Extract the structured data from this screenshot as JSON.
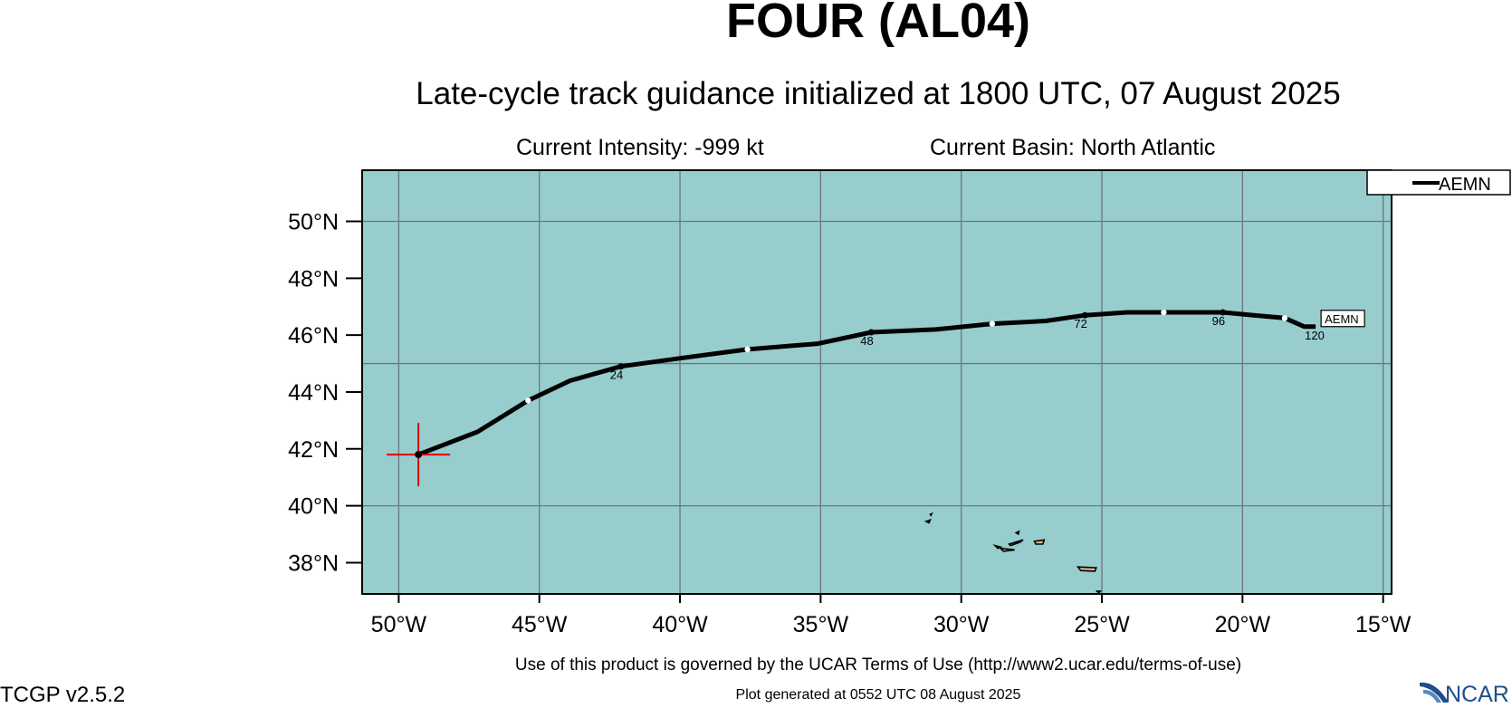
{
  "header": {
    "title": "FOUR (AL04)",
    "subtitle": "Late-cycle track guidance initialized at 1800 UTC, 07 August 2025",
    "intensity": "Current Intensity: -999 kt",
    "basin": "Current Basin: North Atlantic"
  },
  "footer": {
    "terms": "Use of this product is governed by the UCAR Terms of Use (http://www2.ucar.edu/terms-of-use)",
    "generated": "Plot generated at 0552 UTC   08 August 2025",
    "version": "TCGP v2.5.2",
    "logo_text": "NCAR"
  },
  "colors": {
    "ocean": "#97cdcd",
    "grid": "#6e7676",
    "track": "#000000",
    "current_position": "#dd0000",
    "land": "#d8b68a"
  },
  "map": {
    "lon_range": [
      -51.3,
      -14.7
    ],
    "lat_range": [
      36.9,
      51.8
    ],
    "lon_ticks": [
      {
        "value": -50,
        "label": "50°W"
      },
      {
        "value": -45,
        "label": "45°W"
      },
      {
        "value": -40,
        "label": "40°W"
      },
      {
        "value": -35,
        "label": "35°W"
      },
      {
        "value": -30,
        "label": "30°W"
      },
      {
        "value": -25,
        "label": "25°W"
      },
      {
        "value": -20,
        "label": "20°W"
      },
      {
        "value": -15,
        "label": "15°W"
      }
    ],
    "lat_ticks": [
      {
        "value": 38,
        "label": "38°N"
      },
      {
        "value": 40,
        "label": "40°N"
      },
      {
        "value": 42,
        "label": "42°N"
      },
      {
        "value": 44,
        "label": "44°N"
      },
      {
        "value": 46,
        "label": "46°N"
      },
      {
        "value": 48,
        "label": "48°N"
      },
      {
        "value": 50,
        "label": "50°N"
      }
    ],
    "current_position": {
      "lon": -49.3,
      "lat": 41.8
    },
    "legend": [
      {
        "name": "AEMN"
      }
    ]
  },
  "chart_data": {
    "type": "line",
    "series": [
      {
        "name": "AEMN",
        "points": [
          {
            "lon": -49.3,
            "lat": 41.8,
            "tau": 0,
            "marker": "dot"
          },
          {
            "lon": -47.2,
            "lat": 42.6,
            "tau": 6
          },
          {
            "lon": -45.4,
            "lat": 43.7,
            "tau": 12,
            "marker": "open"
          },
          {
            "lon": -43.9,
            "lat": 44.4,
            "tau": 18
          },
          {
            "lon": -42.1,
            "lat": 44.9,
            "tau": 24,
            "marker": "dot",
            "label": "24"
          },
          {
            "lon": -39.9,
            "lat": 45.2,
            "tau": 30
          },
          {
            "lon": -37.6,
            "lat": 45.5,
            "tau": 36,
            "marker": "open"
          },
          {
            "lon": -35.1,
            "lat": 45.7,
            "tau": 42
          },
          {
            "lon": -33.2,
            "lat": 46.1,
            "tau": 48,
            "marker": "dot",
            "label": "48"
          },
          {
            "lon": -30.9,
            "lat": 46.2,
            "tau": 54
          },
          {
            "lon": -28.9,
            "lat": 46.4,
            "tau": 60,
            "marker": "open"
          },
          {
            "lon": -27.0,
            "lat": 46.5,
            "tau": 66
          },
          {
            "lon": -25.6,
            "lat": 46.7,
            "tau": 72,
            "marker": "dot",
            "label": "72"
          },
          {
            "lon": -24.1,
            "lat": 46.8,
            "tau": 78
          },
          {
            "lon": -22.8,
            "lat": 46.8,
            "tau": 84,
            "marker": "open"
          },
          {
            "lon": -21.5,
            "lat": 46.8,
            "tau": 90
          },
          {
            "lon": -20.7,
            "lat": 46.8,
            "tau": 96,
            "marker": "dot",
            "label": "96"
          },
          {
            "lon": -19.6,
            "lat": 46.7,
            "tau": 102
          },
          {
            "lon": -18.5,
            "lat": 46.6,
            "tau": 108,
            "marker": "open"
          },
          {
            "lon": -17.8,
            "lat": 46.3,
            "tau": 114
          },
          {
            "lon": -17.4,
            "lat": 46.3,
            "tau": 120,
            "label": "120"
          }
        ],
        "end_label": "AEMN"
      }
    ],
    "xlabel": "",
    "ylabel": "",
    "xlim": [
      -51.3,
      -14.7
    ],
    "ylim": [
      36.9,
      51.8
    ],
    "grid": true,
    "legend_position": "outside-top-right"
  },
  "islands": [
    {
      "name": "flores-corvo-a",
      "points": [
        [
          -31.25,
          39.45
        ],
        [
          -31.1,
          39.5
        ],
        [
          -31.15,
          39.4
        ]
      ]
    },
    {
      "name": "flores-corvo-b",
      "points": [
        [
          -31.1,
          39.7
        ],
        [
          -31.05,
          39.72
        ],
        [
          -31.08,
          39.66
        ]
      ]
    },
    {
      "name": "faial",
      "points": [
        [
          -28.8,
          38.6
        ],
        [
          -28.6,
          38.55
        ],
        [
          -28.7,
          38.5
        ]
      ]
    },
    {
      "name": "pico",
      "points": [
        [
          -28.6,
          38.5
        ],
        [
          -28.1,
          38.45
        ],
        [
          -28.5,
          38.4
        ]
      ]
    },
    {
      "name": "sao-jorge",
      "points": [
        [
          -28.3,
          38.65
        ],
        [
          -27.8,
          38.8
        ],
        [
          -27.9,
          38.72
        ],
        [
          -28.25,
          38.6
        ]
      ]
    },
    {
      "name": "graciosa",
      "points": [
        [
          -28.05,
          39.05
        ],
        [
          -27.95,
          39.1
        ],
        [
          -27.97,
          39.0
        ]
      ]
    },
    {
      "name": "terceira",
      "points": [
        [
          -27.4,
          38.75
        ],
        [
          -27.05,
          38.8
        ],
        [
          -27.1,
          38.65
        ],
        [
          -27.35,
          38.65
        ]
      ]
    },
    {
      "name": "sao-miguel",
      "points": [
        [
          -25.85,
          37.85
        ],
        [
          -25.2,
          37.82
        ],
        [
          -25.25,
          37.7
        ],
        [
          -25.75,
          37.72
        ]
      ]
    },
    {
      "name": "santa-maria",
      "points": [
        [
          -25.2,
          37.0
        ],
        [
          -25.05,
          37.0
        ],
        [
          -25.1,
          36.95
        ]
      ]
    }
  ]
}
